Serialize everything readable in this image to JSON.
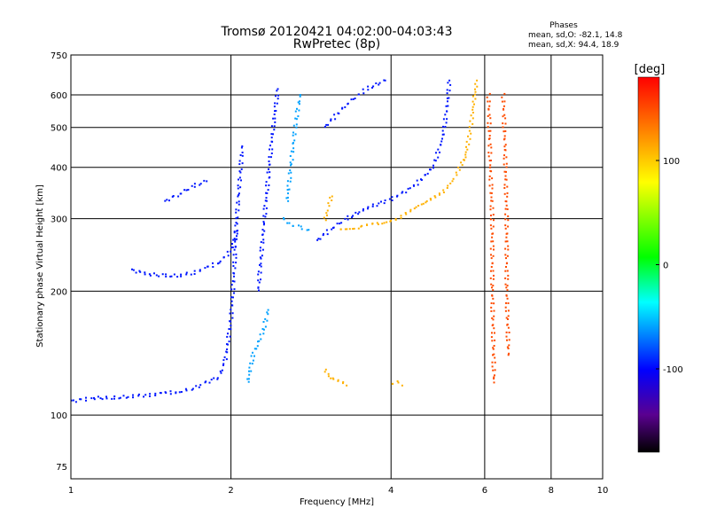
{
  "chart_data": {
    "type": "scatter",
    "title": "Tromsø 20120421 04:02:00-04:03:43",
    "subtitle": "RwPretec (8p)",
    "xlabel": "Frequency [MHz]",
    "ylabel": "Stationary phase Virtual Height [km]",
    "xscale": "log",
    "yscale": "log",
    "xlim": [
      1,
      10
    ],
    "ylim": [
      70,
      750
    ],
    "grid": true,
    "xticks": [
      1,
      2,
      4,
      6,
      8,
      10
    ],
    "xtick_labels": [
      "1",
      "2",
      "4",
      "6",
      "8",
      "10"
    ],
    "yticks": [
      75,
      100,
      200,
      300,
      400,
      500,
      600,
      750
    ],
    "ytick_labels": [
      "75",
      "100",
      "200",
      "300",
      "400",
      "500",
      "600",
      "750"
    ],
    "stats": {
      "title": "Phases",
      "line_o": "mean, sd,O: -82.1, 14.8",
      "line_x": "mean, sd,X:  94.4, 18.9"
    },
    "colorbar": {
      "label": "[deg]",
      "range": [
        -180,
        180
      ],
      "ticks": [
        100,
        0,
        -100
      ],
      "tick_labels": [
        "100",
        "0",
        "-100"
      ],
      "position": "right"
    },
    "series": [
      {
        "color_value": -95,
        "segments": [
          [
            [
              1.0,
              108
            ],
            [
              1.1,
              110
            ],
            [
              1.2,
              110
            ],
            [
              1.3,
              111
            ],
            [
              1.4,
              112
            ],
            [
              1.5,
              113
            ],
            [
              1.6,
              114
            ],
            [
              1.7,
              116
            ],
            [
              1.8,
              120
            ],
            [
              1.9,
              124
            ],
            [
              1.95,
              135
            ],
            [
              2.0,
              170
            ],
            [
              2.03,
              230
            ],
            [
              2.05,
              300
            ],
            [
              2.08,
              380
            ],
            [
              2.1,
              450
            ]
          ],
          [
            [
              1.3,
              225
            ],
            [
              1.4,
              220
            ],
            [
              1.5,
              218
            ],
            [
              1.6,
              218
            ],
            [
              1.7,
              222
            ],
            [
              1.8,
              228
            ],
            [
              1.9,
              235
            ],
            [
              2.0,
              250
            ],
            [
              2.05,
              280
            ]
          ],
          [
            [
              2.9,
              265
            ],
            [
              3.1,
              285
            ],
            [
              3.3,
              300
            ],
            [
              3.6,
              318
            ],
            [
              4.0,
              335
            ],
            [
              4.4,
              358
            ],
            [
              4.8,
              400
            ],
            [
              5.0,
              470
            ],
            [
              5.1,
              560
            ],
            [
              5.15,
              650
            ]
          ],
          [
            [
              2.25,
              200
            ],
            [
              2.3,
              280
            ],
            [
              2.35,
              380
            ],
            [
              2.4,
              500
            ],
            [
              2.45,
              620
            ]
          ],
          [
            [
              3.0,
              500
            ],
            [
              3.3,
              570
            ],
            [
              3.6,
              620
            ],
            [
              3.9,
              650
            ]
          ],
          [
            [
              1.5,
              330
            ],
            [
              1.6,
              345
            ],
            [
              1.7,
              360
            ],
            [
              1.8,
              370
            ]
          ]
        ]
      },
      {
        "color_value": -60,
        "segments": [
          [
            [
              2.55,
              330
            ],
            [
              2.6,
              420
            ],
            [
              2.65,
              520
            ],
            [
              2.7,
              600
            ]
          ],
          [
            [
              2.15,
              120
            ],
            [
              2.2,
              140
            ],
            [
              2.3,
              160
            ],
            [
              2.35,
              180
            ]
          ],
          [
            [
              2.5,
              300
            ],
            [
              2.6,
              290
            ],
            [
              2.7,
              285
            ],
            [
              2.8,
              282
            ]
          ]
        ]
      },
      {
        "color_value": 110,
        "segments": [
          [
            [
              3.2,
              285
            ],
            [
              3.5,
              285
            ],
            [
              3.8,
              292
            ],
            [
              4.2,
              305
            ],
            [
              4.6,
              325
            ],
            [
              5.0,
              350
            ],
            [
              5.3,
              380
            ],
            [
              5.5,
              420
            ],
            [
              5.65,
              500
            ],
            [
              5.75,
              600
            ],
            [
              5.8,
              650
            ]
          ],
          [
            [
              3.0,
              300
            ],
            [
              3.05,
              320
            ],
            [
              3.1,
              340
            ]
          ],
          [
            [
              3.0,
              130
            ],
            [
              3.1,
              122
            ],
            [
              3.3,
              118
            ]
          ],
          [
            [
              4.0,
              120
            ],
            [
              4.1,
              120
            ],
            [
              4.2,
              118
            ]
          ]
        ]
      },
      {
        "color_value": 150,
        "segments": [
          [
            [
              6.1,
              600
            ],
            [
              6.15,
              400
            ],
            [
              6.2,
              300
            ],
            [
              6.2,
              200
            ],
            [
              6.25,
              120
            ]
          ],
          [
            [
              6.5,
              600
            ],
            [
              6.55,
              450
            ],
            [
              6.6,
              300
            ],
            [
              6.6,
              200
            ],
            [
              6.65,
              140
            ]
          ]
        ]
      }
    ]
  }
}
